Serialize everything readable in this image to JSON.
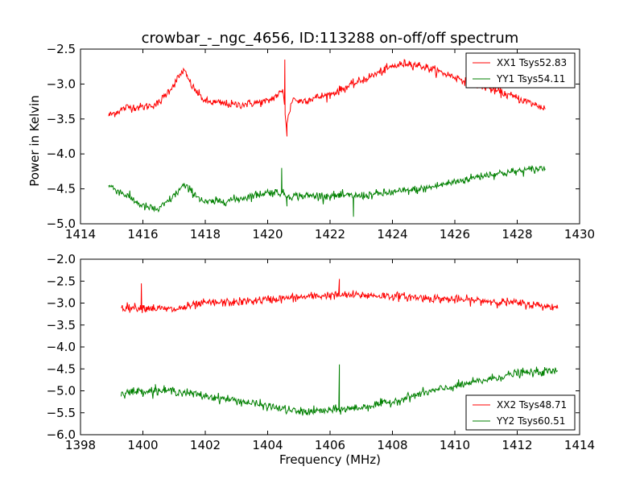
{
  "chart_data": [
    {
      "type": "line",
      "title": "crowbar_-_ngc_4656, ID:113288 on-off/off spectrum",
      "xlabel": "",
      "ylabel": "Power in Kelvin",
      "xlim": [
        1414,
        1430
      ],
      "ylim": [
        -5.0,
        -2.5
      ],
      "x_ticks": [
        "1414",
        "1416",
        "1418",
        "1420",
        "1422",
        "1424",
        "1426",
        "1428",
        "1430"
      ],
      "y_ticks": [
        "−2.5",
        "−3.0",
        "−3.5",
        "−4.0",
        "−4.5",
        "−5.0"
      ],
      "grid": false,
      "legend_position": "top-right",
      "series": [
        {
          "name": "XX1 Tsys52.83",
          "color": "#ff0000",
          "x": [
            1414.9,
            1415.5,
            1416.0,
            1416.5,
            1417.0,
            1417.3,
            1417.6,
            1418.0,
            1419.0,
            1420.0,
            1420.5,
            1420.6,
            1420.8,
            1421.0,
            1422.0,
            1423.0,
            1424.0,
            1424.5,
            1425.0,
            1426.0,
            1427.0,
            1428.0,
            1428.9
          ],
          "y": [
            -3.45,
            -3.33,
            -3.33,
            -3.28,
            -3.0,
            -2.8,
            -3.05,
            -3.25,
            -3.3,
            -3.25,
            -3.1,
            -3.6,
            -3.2,
            -3.25,
            -3.15,
            -2.95,
            -2.75,
            -2.7,
            -2.75,
            -2.9,
            -3.05,
            -3.2,
            -3.35
          ],
          "spikes": [
            {
              "x": 1420.55,
              "y": -2.65
            },
            {
              "x": 1420.62,
              "y": -3.75
            }
          ]
        },
        {
          "name": "YY1 Tsys54.11",
          "color": "#008000",
          "x": [
            1414.9,
            1415.5,
            1416.0,
            1416.5,
            1417.0,
            1417.3,
            1417.6,
            1418.0,
            1419.0,
            1420.0,
            1420.4,
            1420.6,
            1421.0,
            1422.0,
            1423.0,
            1424.0,
            1425.0,
            1426.0,
            1427.0,
            1428.0,
            1428.9
          ],
          "y": [
            -4.45,
            -4.6,
            -4.75,
            -4.8,
            -4.6,
            -4.45,
            -4.55,
            -4.7,
            -4.65,
            -4.55,
            -4.55,
            -4.6,
            -4.6,
            -4.6,
            -4.6,
            -4.55,
            -4.5,
            -4.4,
            -4.3,
            -4.25,
            -4.2
          ],
          "spikes": [
            {
              "x": 1420.45,
              "y": -4.2
            },
            {
              "x": 1420.62,
              "y": -4.75
            },
            {
              "x": 1422.75,
              "y": -4.9
            }
          ]
        }
      ]
    },
    {
      "type": "line",
      "title": "",
      "xlabel": "Frequency (MHz)",
      "ylabel": "",
      "xlim": [
        1398,
        1414
      ],
      "ylim": [
        -6.0,
        -2.0
      ],
      "x_ticks": [
        "1398",
        "1400",
        "1402",
        "1404",
        "1406",
        "1408",
        "1410",
        "1412",
        "1414"
      ],
      "y_ticks": [
        "−2.0",
        "−2.5",
        "−3.0",
        "−3.5",
        "−4.0",
        "−4.5",
        "−5.0",
        "−5.5",
        "−6.0"
      ],
      "grid": false,
      "legend_position": "bottom-right",
      "series": [
        {
          "name": "XX2 Tsys48.71",
          "color": "#ff0000",
          "x": [
            1399.3,
            1400.0,
            1401.0,
            1402.0,
            1403.0,
            1404.0,
            1405.0,
            1406.0,
            1407.0,
            1408.0,
            1409.0,
            1410.0,
            1411.0,
            1412.0,
            1413.3
          ],
          "y": [
            -3.1,
            -3.1,
            -3.15,
            -3.0,
            -2.98,
            -2.92,
            -2.87,
            -2.82,
            -2.82,
            -2.84,
            -2.88,
            -2.92,
            -2.95,
            -3.0,
            -3.1
          ],
          "spikes": [
            {
              "x": 1399.95,
              "y": -2.55
            },
            {
              "x": 1406.3,
              "y": -2.45
            }
          ]
        },
        {
          "name": "YY2 Tsys60.51",
          "color": "#008000",
          "x": [
            1399.3,
            1400.0,
            1401.0,
            1402.0,
            1403.0,
            1404.0,
            1405.0,
            1406.0,
            1407.0,
            1408.0,
            1409.0,
            1410.0,
            1411.0,
            1412.0,
            1413.3
          ],
          "y": [
            -5.05,
            -5.0,
            -5.0,
            -5.12,
            -5.22,
            -5.35,
            -5.48,
            -5.45,
            -5.38,
            -5.25,
            -5.05,
            -4.9,
            -4.75,
            -4.6,
            -4.55
          ],
          "spikes": [
            {
              "x": 1406.3,
              "y": -4.4
            },
            {
              "x": 1400.4,
              "y": -4.85
            }
          ]
        }
      ]
    }
  ]
}
